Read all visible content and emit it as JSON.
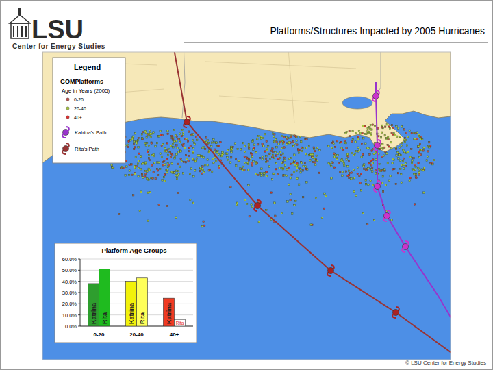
{
  "header": {
    "logo": "LSU",
    "title": "Platforms/Structures Impacted by 2005 Hurricanes",
    "subtitle": "Center for Energy Studies"
  },
  "map": {
    "legend": {
      "title": "Legend",
      "layer": "GOMPlatforms",
      "subtitle": "Age in Years (2005)",
      "age_groups": [
        {
          "label": "0-20",
          "color": "#c0504d"
        },
        {
          "label": "20-40",
          "color": "#a8c840"
        },
        {
          "label": "40+",
          "color": "#e03030"
        }
      ],
      "paths": [
        {
          "label": "Katrina's Path",
          "color": "#9933cc"
        },
        {
          "label": "Rita's Path",
          "color": "#993333"
        }
      ]
    }
  },
  "chart_data": {
    "type": "bar",
    "title": "Platform Age Groups",
    "categories": [
      "0-20",
      "20-40",
      "40+"
    ],
    "series": [
      {
        "name": "Katrina",
        "colors": [
          "#2e9e2e",
          "#f2f20a",
          "#f03a22"
        ],
        "values": [
          38,
          40,
          25
        ]
      },
      {
        "name": "Rita",
        "colors": [
          "#1fbb1f",
          "#ffff5a",
          "#ffffff"
        ],
        "values": [
          51,
          43,
          6
        ]
      }
    ],
    "ylim": [
      0,
      60
    ],
    "yticks": [
      {
        "value": 0,
        "label": "0.0%"
      },
      {
        "value": 10,
        "label": "10.0%"
      },
      {
        "value": 20,
        "label": "20.0%"
      },
      {
        "value": 30,
        "label": "30.0%"
      },
      {
        "value": 40,
        "label": "40.0%"
      },
      {
        "value": 50,
        "label": "50.0%"
      },
      {
        "value": 60,
        "label": "60.0%"
      }
    ],
    "grid": true
  },
  "footer": "© LSU Center for Energy Studies"
}
